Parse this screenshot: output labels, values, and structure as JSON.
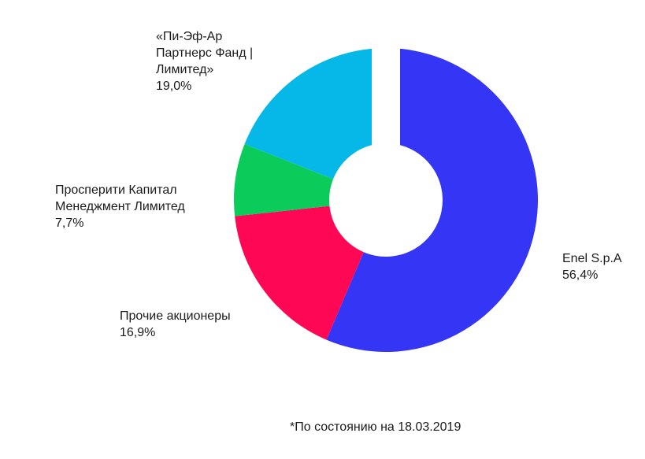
{
  "chart_data": {
    "type": "pie",
    "variant": "donut",
    "slices": [
      {
        "name": "Enel S.p.A",
        "label_lines": [
          "Enel S.p.A"
        ],
        "value": 56.4,
        "value_label": "56,4%",
        "color": "#3535f5"
      },
      {
        "name": "Прочие акционеры",
        "label_lines": [
          "Прочие акционеры"
        ],
        "value": 16.9,
        "value_label": "16,9%",
        "color": "#fe0755"
      },
      {
        "name": "Просперити Капитал Менеджмент Лимитед",
        "label_lines": [
          "Просперити Капитал",
          "Менеджмент Лимитед"
        ],
        "value": 7.7,
        "value_label": "7,7%",
        "color": "#0bcb5b"
      },
      {
        "name": "«Пи-Эф-Ар Партнерс Фанд | Лимитед»",
        "label_lines": [
          "«Пи-Эф-Ар",
          "Партнерс Фанд |",
          "Лимитед»"
        ],
        "value": 19.0,
        "value_label": "19,0%",
        "color": "#05b8e8"
      }
    ],
    "exploded_gap_at_top": true,
    "legend": "none",
    "footnote": "*По состоянию на 18.03.2019"
  }
}
